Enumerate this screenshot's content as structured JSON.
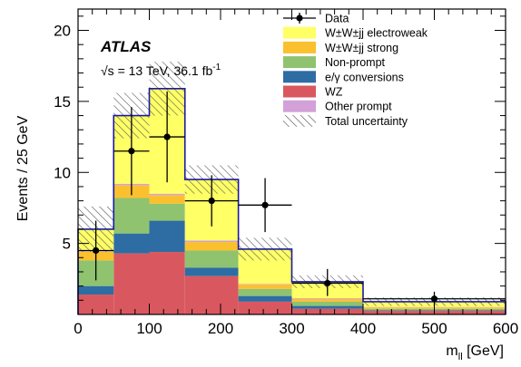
{
  "chart_data": {
    "type": "bar",
    "subtype": "stacked-histogram",
    "experiment_label": "ATLAS",
    "energy_label": "√s = 13 TeV, 36.1 fb",
    "energy_label_sup": "-1",
    "xlabel": "m",
    "xlabel_sub": "ll",
    "xlabel_unit": " [GeV]",
    "ylabel": "Events / 25 GeV",
    "xlim": [
      0,
      600
    ],
    "ylim": [
      0,
      21.5
    ],
    "xticks": [
      0,
      100,
      200,
      300,
      400,
      500,
      600
    ],
    "yticks": [
      5,
      10,
      15,
      20
    ],
    "bin_edges": [
      0,
      50,
      100,
      150,
      225,
      300,
      400,
      600
    ],
    "series": [
      {
        "name": "WZ",
        "color": "#d9585f",
        "values": [
          1.4,
          4.3,
          4.4,
          2.7,
          0.9,
          0.4,
          0.25
        ]
      },
      {
        "name": "e/γ conversions",
        "color": "#2e6da4",
        "values": [
          0.6,
          1.4,
          2.2,
          0.6,
          0.4,
          0.2,
          0.05
        ]
      },
      {
        "name": "Non-prompt",
        "color": "#8fc36f",
        "values": [
          1.8,
          2.5,
          1.2,
          1.2,
          0.5,
          0.3,
          0.1
        ]
      },
      {
        "name": "W±W±jj strong",
        "color": "#fbc02d",
        "values": [
          0.6,
          0.9,
          0.6,
          0.6,
          0.3,
          0.2,
          0.1
        ]
      },
      {
        "name": "Other prompt",
        "color": "#d3a0d8",
        "values": [
          0.05,
          0.1,
          0.1,
          0.1,
          0.05,
          0.05,
          0.03
        ]
      },
      {
        "name": "W±W±jj electroweak",
        "color": "#ffff66",
        "values": [
          1.55,
          4.8,
          7.4,
          4.3,
          2.45,
          1.15,
          0.37
        ]
      }
    ],
    "total_color": "#1a1aa0",
    "uncertainty": [
      1.6,
      1.6,
      1.9,
      1.0,
      0.8,
      0.45,
      0.3
    ],
    "data_points": [
      {
        "x": 25,
        "y": 4.5,
        "xerr": 25,
        "ylo": 2.4,
        "yhi": 6.6
      },
      {
        "x": 75,
        "y": 11.5,
        "xerr": 25,
        "ylo": 8.4,
        "yhi": 14.6
      },
      {
        "x": 125,
        "y": 12.5,
        "xerr": 25,
        "ylo": 9.3,
        "yhi": 15.7
      },
      {
        "x": 187.5,
        "y": 8.0,
        "xerr": 37.5,
        "ylo": 6.2,
        "yhi": 9.8
      },
      {
        "x": 262.5,
        "y": 7.7,
        "xerr": 37.5,
        "ylo": 5.8,
        "yhi": 9.6
      },
      {
        "x": 350,
        "y": 2.2,
        "xerr": 50,
        "ylo": 1.3,
        "yhi": 3.2
      },
      {
        "x": 500,
        "y": 1.1,
        "xerr": 100,
        "ylo": 0.6,
        "yhi": 1.6
      }
    ],
    "legend": {
      "placement": "top-right",
      "entries": [
        {
          "label": "Data",
          "kind": "data"
        },
        {
          "label": "W±W±jj electroweak",
          "kind": "fill",
          "color": "#ffff66"
        },
        {
          "label": "W±W±jj strong",
          "kind": "fill",
          "color": "#fbc02d"
        },
        {
          "label": "Non-prompt",
          "kind": "fill",
          "color": "#8fc36f"
        },
        {
          "label": "e/γ conversions",
          "kind": "fill",
          "color": "#2e6da4"
        },
        {
          "label": "WZ",
          "kind": "fill",
          "color": "#d9585f"
        },
        {
          "label": "Other prompt",
          "kind": "fill",
          "color": "#d3a0d8"
        },
        {
          "label": "Total uncertainty",
          "kind": "hatch"
        }
      ]
    }
  }
}
